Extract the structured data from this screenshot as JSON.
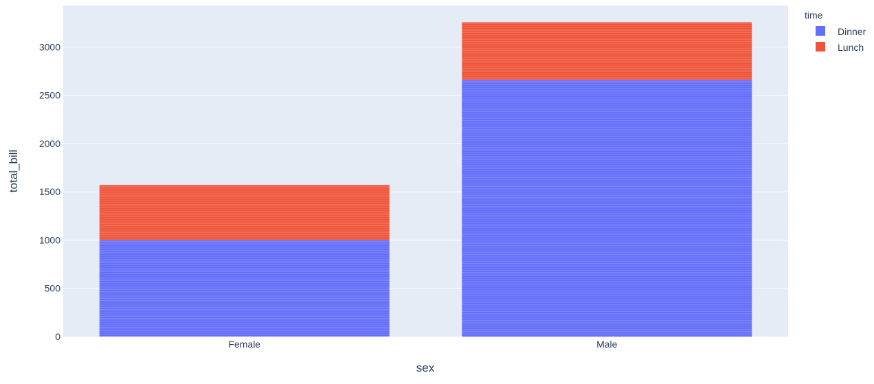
{
  "chart_data": {
    "type": "bar",
    "barmode": "stack",
    "title": "",
    "xlabel": "sex",
    "ylabel": "total_bill",
    "categories": [
      "Female",
      "Male"
    ],
    "ylim": [
      0,
      3430
    ],
    "yticks": [
      0,
      500,
      1000,
      1500,
      2000,
      2500,
      3000
    ],
    "grid": true,
    "legend": {
      "title": "time",
      "position": "top-right"
    },
    "series": [
      {
        "name": "Dinner",
        "color": "#636efa",
        "values": [
          1000,
          2660
        ]
      },
      {
        "name": "Lunch",
        "color": "#ef553b",
        "values": [
          571,
          596
        ]
      }
    ]
  }
}
